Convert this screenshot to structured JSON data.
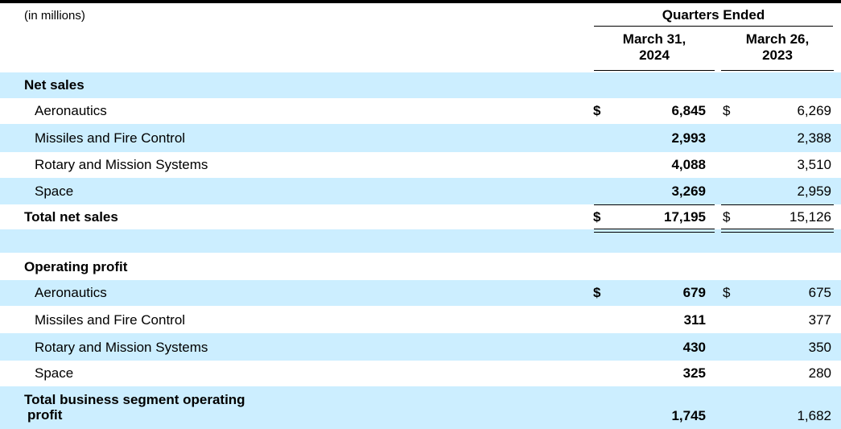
{
  "header": {
    "units": "(in millions)",
    "period_group": "Quarters Ended",
    "col_2024": "March 31,\n2024",
    "col_2024_line1": "March 31,",
    "col_2024_line2": "2024",
    "col_2023_line1": "March 26,",
    "col_2023_line2": "2023"
  },
  "net_sales": {
    "title": "Net sales",
    "rows": [
      {
        "label": "Aeronautics",
        "cur_2024": "$",
        "v2024": "6,845",
        "cur_2023": "$",
        "v2023": "6,269"
      },
      {
        "label": "Missiles and Fire Control",
        "v2024": "2,993",
        "v2023": "2,388"
      },
      {
        "label": "Rotary and Mission Systems",
        "v2024": "4,088",
        "v2023": "3,510"
      },
      {
        "label": "Space",
        "v2024": "3,269",
        "v2023": "2,959"
      }
    ],
    "total": {
      "label": "Total net sales",
      "cur_2024": "$",
      "v2024": "17,195",
      "cur_2023": "$",
      "v2023": "15,126"
    }
  },
  "operating_profit": {
    "title": "Operating profit",
    "rows": [
      {
        "label": "Aeronautics",
        "cur_2024": "$",
        "v2024": "679",
        "cur_2023": "$",
        "v2023": "675"
      },
      {
        "label": "Missiles and Fire Control",
        "v2024": "311",
        "v2023": "377"
      },
      {
        "label": "Rotary and Mission Systems",
        "v2024": "430",
        "v2023": "350"
      },
      {
        "label": "Space",
        "v2024": "325",
        "v2023": "280"
      }
    ],
    "total": {
      "label_line1": "Total business segment operating",
      "label_line2": "profit",
      "v2024": "1,745",
      "v2023": "1,682"
    }
  }
}
